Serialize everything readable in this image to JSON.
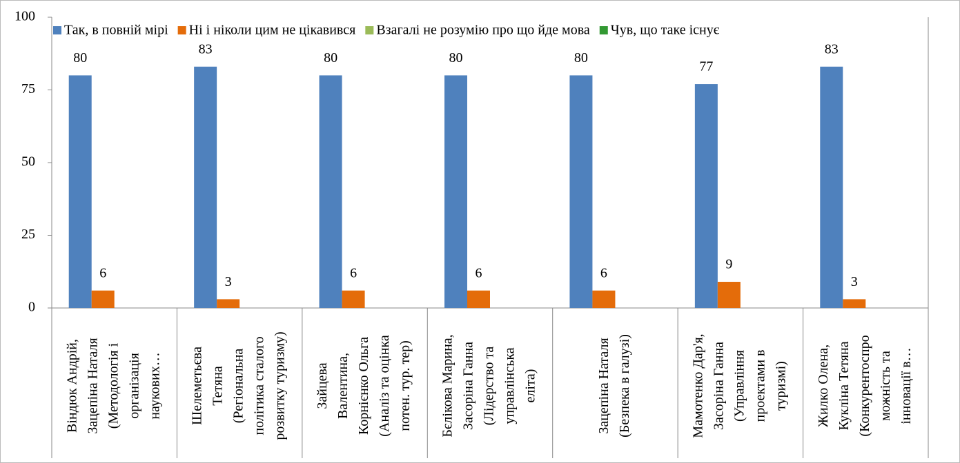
{
  "chart_data": {
    "type": "bar",
    "categories": [
      [
        "Віндюк Андрій,",
        "Зацепіна Наталя",
        "(Методологія і",
        "організація",
        "наукових…"
      ],
      [
        "Шелеметьєва",
        "Тетяна",
        "(Регіональна",
        "політика сталого",
        "розвитку туризму)"
      ],
      [
        "Зайцева",
        "Валентина,",
        "Корнієнко Ольга",
        "(Аналіз та оцінка",
        "потен. тур. тер)"
      ],
      [
        "Бєлікова Марина,",
        "Засоріна Ганна",
        "(Лідерство та",
        "управлінська",
        "еліта)"
      ],
      [
        "Зацепіна Наталя",
        "(Безпека в галузі)"
      ],
      [
        "Мамотенко Дар'я,",
        "Засоріна Ганна",
        "(Управління",
        "проектами в",
        "туризмі)"
      ],
      [
        "Жилко Олена,",
        "Кукліна Тетяна",
        "(Конкурентоспро",
        "можність та",
        "інновації в…"
      ]
    ],
    "series": [
      {
        "name": "Так, в повній мірі",
        "color": "#4f81bd",
        "values": [
          80,
          83,
          80,
          80,
          80,
          77,
          83
        ],
        "data_labels": true
      },
      {
        "name": "Ні і ніколи цим не цікавився",
        "color": "#e46c0a",
        "values": [
          6,
          3,
          6,
          6,
          6,
          9,
          3
        ],
        "data_labels": true
      },
      {
        "name": "Взагалі не розумію про що йде мова",
        "color": "#9bbb59",
        "values": [
          0,
          0,
          0,
          0,
          0,
          0,
          0
        ],
        "data_labels": false
      },
      {
        "name": "Чув, що таке існує",
        "color": "#339933",
        "values": [
          0,
          0,
          0,
          0,
          0,
          0,
          0
        ],
        "data_labels": false
      }
    ],
    "ylim": [
      0,
      100
    ],
    "yticks": [
      0,
      25,
      50,
      75,
      100
    ],
    "grid": false,
    "legend": "top"
  }
}
